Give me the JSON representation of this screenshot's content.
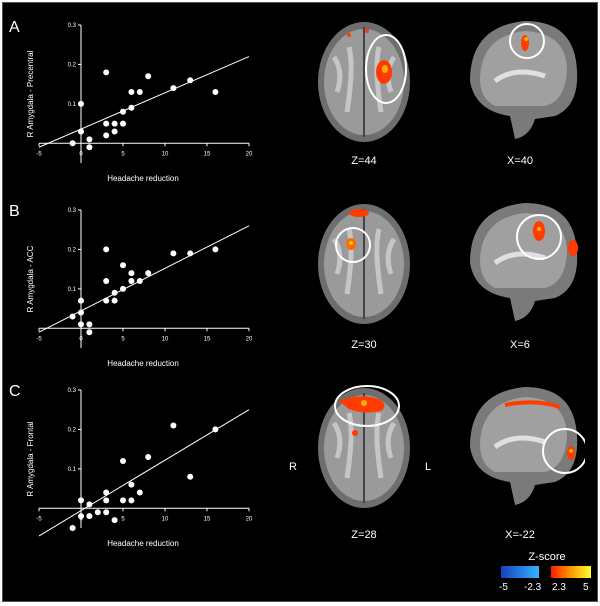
{
  "panels": [
    {
      "letter": "A",
      "ylabel": "R Amygdala - Precentral",
      "xlabel": "Headache reduction",
      "xticks": [
        "-5",
        "0",
        "5",
        "10",
        "15",
        "20"
      ],
      "yticks": [
        "0.1",
        "0.2",
        "0.3"
      ],
      "slices": [
        "Z=44",
        "X=40"
      ]
    },
    {
      "letter": "B",
      "ylabel": "R Amygdala - ACC",
      "xlabel": "Headache reduction",
      "xticks": [
        "-5",
        "0",
        "5",
        "10",
        "15",
        "20"
      ],
      "yticks": [
        "0.1",
        "0.2",
        "0.3"
      ],
      "slices": [
        "Z=30",
        "X=6"
      ]
    },
    {
      "letter": "C",
      "ylabel": "R Amygdala - Frontal",
      "xlabel": "Headache reduction",
      "xticks": [
        "-5",
        "0",
        "5",
        "10",
        "15",
        "20"
      ],
      "yticks": [
        "0.1",
        "0.2",
        "0.3"
      ],
      "slices": [
        "Z=28",
        "X=-22"
      ]
    }
  ],
  "orientation": {
    "right": "R",
    "left": "L"
  },
  "colorbar": {
    "title": "Z-score",
    "ticks": [
      "-5",
      "-2.3",
      "2.3",
      "5"
    ],
    "negative_colors": [
      "#1a3fbf",
      "#33b5ff"
    ],
    "positive_colors": [
      "#ff1a00",
      "#ff9a00",
      "#ffff33"
    ]
  },
  "chart_data": [
    {
      "type": "scatter",
      "xlabel": "Headache reduction",
      "ylabel": "R Amygdala - Precentral",
      "xlim": [
        -5,
        20
      ],
      "ylim": [
        -0.05,
        0.3
      ],
      "points": [
        [
          0,
          0.1
        ],
        [
          0,
          0.03
        ],
        [
          -1,
          0
        ],
        [
          1,
          -0.01
        ],
        [
          1,
          0.01
        ],
        [
          3,
          0.18
        ],
        [
          3,
          0.05
        ],
        [
          3,
          0.02
        ],
        [
          4,
          0.03
        ],
        [
          4,
          0.05
        ],
        [
          5,
          0.08
        ],
        [
          5,
          0.05
        ],
        [
          6,
          0.13
        ],
        [
          6,
          0.09
        ],
        [
          7,
          0.13
        ],
        [
          8,
          0.17
        ],
        [
          11,
          0.14
        ],
        [
          13,
          0.16
        ],
        [
          16,
          0.13
        ]
      ],
      "fit": [
        [
          -5,
          -0.01
        ],
        [
          20,
          0.22
        ]
      ]
    },
    {
      "type": "scatter",
      "xlabel": "Headache reduction",
      "ylabel": "R Amygdala - ACC",
      "xlim": [
        -5,
        20
      ],
      "ylim": [
        -0.05,
        0.3
      ],
      "points": [
        [
          -1,
          0.03
        ],
        [
          0,
          0.07
        ],
        [
          0,
          0.04
        ],
        [
          0,
          0.01
        ],
        [
          1,
          0.01
        ],
        [
          1,
          -0.01
        ],
        [
          3,
          0.2
        ],
        [
          3,
          0.12
        ],
        [
          3,
          0.07
        ],
        [
          4,
          0.09
        ],
        [
          4,
          0.07
        ],
        [
          5,
          0.16
        ],
        [
          5,
          0.1
        ],
        [
          6,
          0.14
        ],
        [
          6,
          0.12
        ],
        [
          7,
          0.12
        ],
        [
          8,
          0.14
        ],
        [
          11,
          0.19
        ],
        [
          13,
          0.19
        ],
        [
          16,
          0.2
        ]
      ],
      "fit": [
        [
          -5,
          -0.01
        ],
        [
          20,
          0.26
        ]
      ]
    },
    {
      "type": "scatter",
      "xlabel": "Headache reduction",
      "ylabel": "R Amygdala - Frontal",
      "xlim": [
        -5,
        20
      ],
      "ylim": [
        -0.05,
        0.3
      ],
      "points": [
        [
          -1,
          -0.05
        ],
        [
          0,
          0.02
        ],
        [
          0,
          -0.02
        ],
        [
          1,
          0.01
        ],
        [
          1,
          -0.02
        ],
        [
          2,
          -0.01
        ],
        [
          3,
          0.04
        ],
        [
          3,
          0.02
        ],
        [
          3,
          -0.01
        ],
        [
          4,
          -0.03
        ],
        [
          5,
          0.02
        ],
        [
          5,
          0.12
        ],
        [
          6,
          0.02
        ],
        [
          6,
          0.06
        ],
        [
          7,
          0.04
        ],
        [
          8,
          0.13
        ],
        [
          11,
          0.21
        ],
        [
          13,
          0.08
        ],
        [
          16,
          0.2
        ]
      ],
      "fit": [
        [
          -5,
          -0.07
        ],
        [
          20,
          0.25
        ]
      ]
    }
  ]
}
